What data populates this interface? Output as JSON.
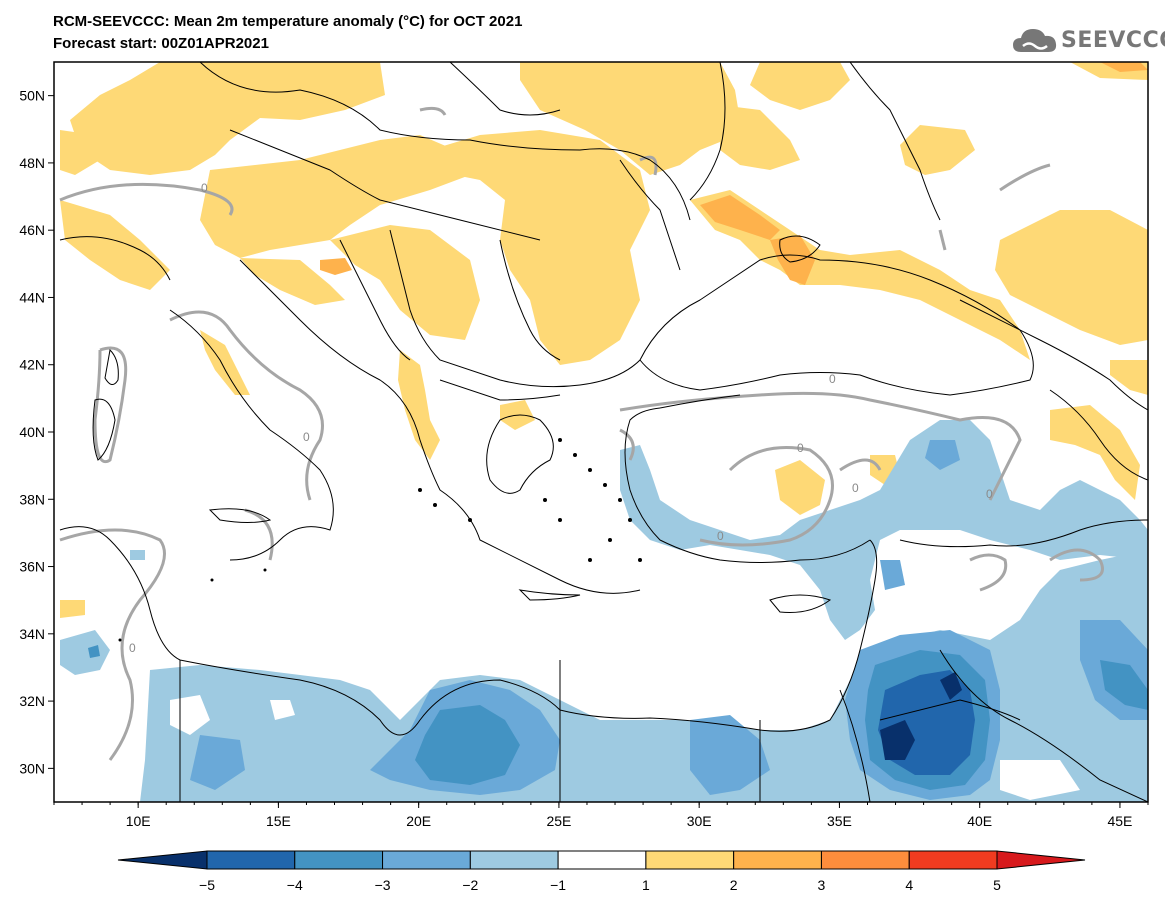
{
  "header": {
    "title": "RCM-SEEVCCC: Mean 2m temperature anomaly (°C) for OCT 2021",
    "subtitle": "Forecast start: 00Z01APR2021",
    "logo_text": "SEEVCCC"
  },
  "map": {
    "type": "filled-contour-map",
    "lon_range": [
      7,
      46
    ],
    "lat_range": [
      29,
      51
    ],
    "lat_ticks": [
      "50N",
      "48N",
      "46N",
      "44N",
      "42N",
      "40N",
      "38N",
      "36N",
      "34N",
      "32N",
      "30N"
    ],
    "lon_ticks": [
      "10E",
      "15E",
      "20E",
      "25E",
      "30E",
      "35E",
      "40E",
      "45E"
    ],
    "zero_contour_label": "0",
    "zero_contour_color": "#a6a6a6",
    "coastline_color": "#000000"
  },
  "colorbar": {
    "labels": [
      "−5",
      "−4",
      "−3",
      "−2",
      "−1",
      "1",
      "2",
      "3",
      "4",
      "5"
    ],
    "colors": [
      "#08306b",
      "#2166ac",
      "#4393c3",
      "#6aa9d8",
      "#9ecae1",
      "#ffffff",
      "#fed976",
      "#feb24c",
      "#fd8d3c",
      "#f03b20",
      "#d7191c"
    ]
  }
}
